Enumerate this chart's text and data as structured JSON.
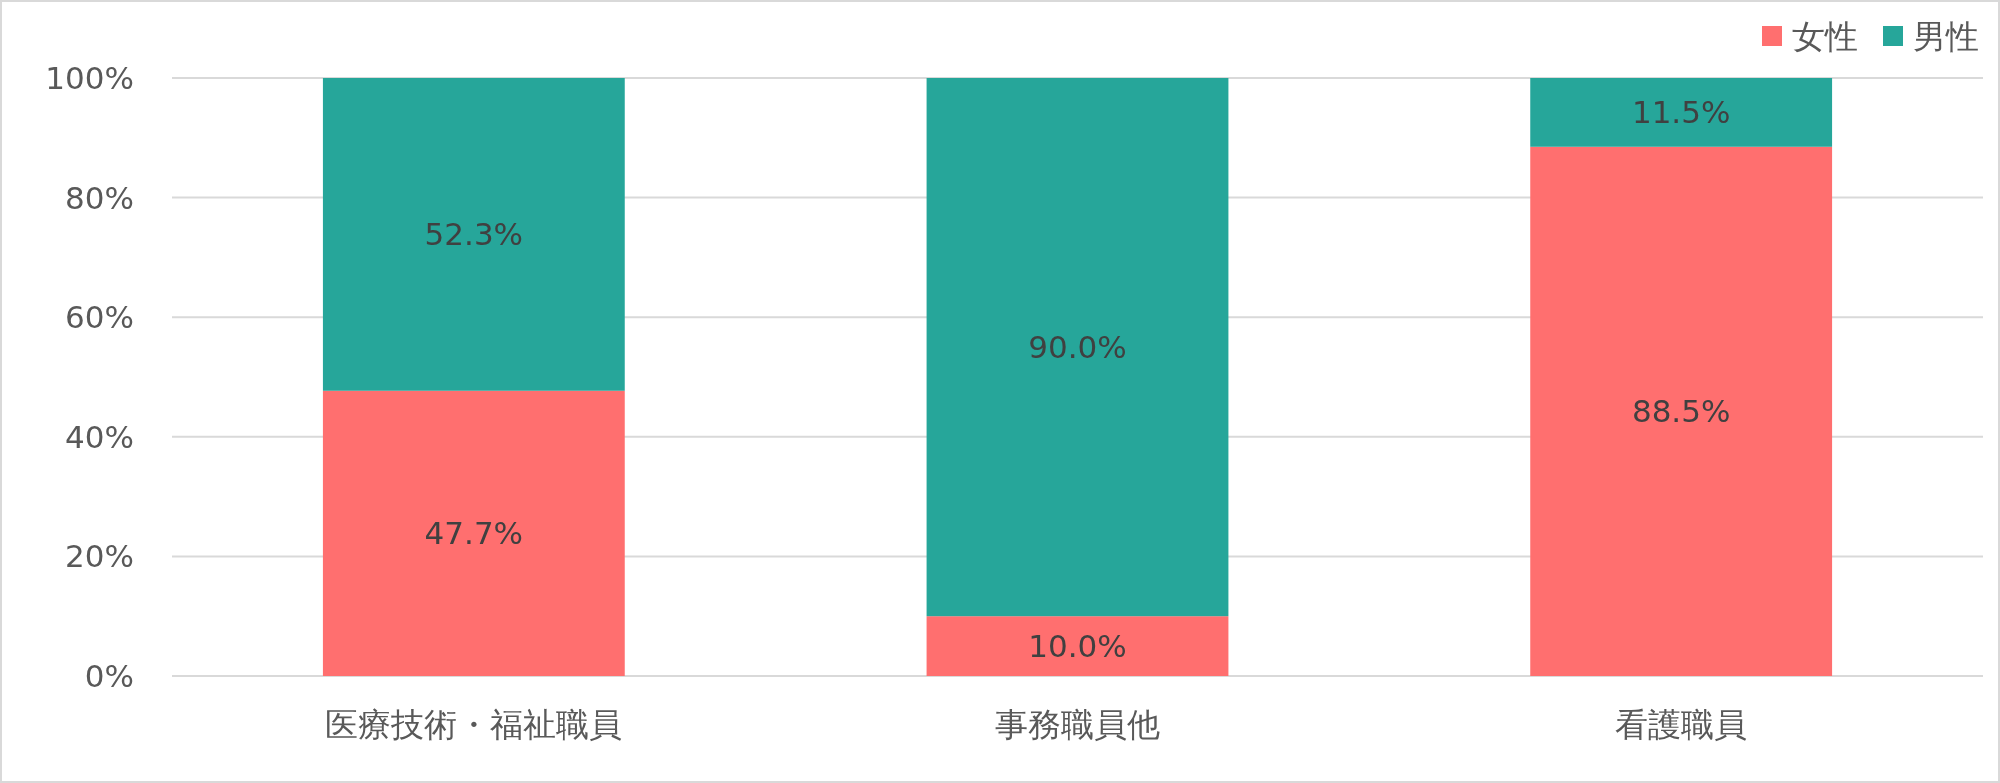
{
  "chart_data": {
    "type": "bar",
    "stacked": true,
    "categories": [
      "医療技術・福祉職員",
      "事務職員他",
      "看護職員"
    ],
    "series": [
      {
        "name": "女性",
        "color": "#ff6f6f",
        "values": [
          47.7,
          10.0,
          88.5
        ],
        "value_labels": [
          "47.7%",
          "10.0%",
          "88.5%"
        ]
      },
      {
        "name": "男性",
        "color": "#26a69a",
        "values": [
          52.3,
          90.0,
          11.5
        ],
        "value_labels": [
          "52.3%",
          "90.0%",
          "11.5%"
        ]
      }
    ],
    "ylim": [
      0,
      100
    ],
    "yticks": [
      {
        "value": 0,
        "label": "0%"
      },
      {
        "value": 20,
        "label": "20%"
      },
      {
        "value": 40,
        "label": "40%"
      },
      {
        "value": 60,
        "label": "60%"
      },
      {
        "value": 80,
        "label": "80%"
      },
      {
        "value": 100,
        "label": "100%"
      }
    ],
    "grid": "y",
    "legend": "top right"
  }
}
